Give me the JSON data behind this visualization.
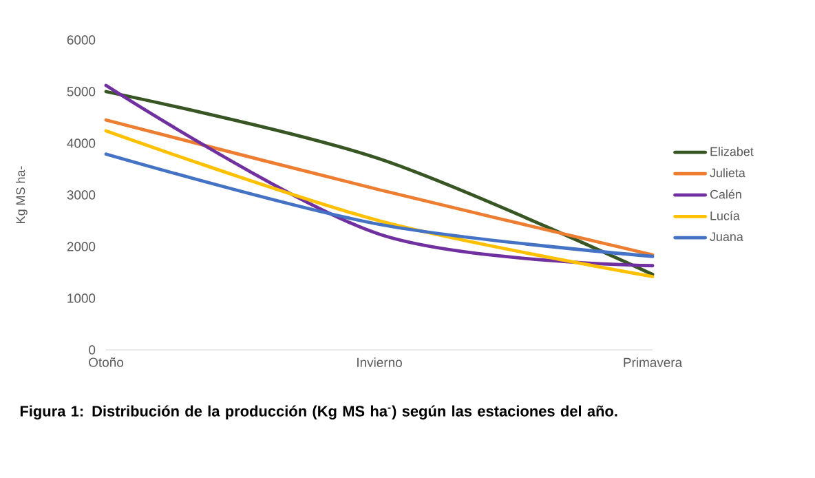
{
  "chart_data": {
    "type": "line",
    "title": "Figura 1: Distribución de la producción (Kg MS ha$^{-}$) según las estaciones del año.",
    "ylabel": "Kg MS ha-",
    "categories": [
      "Otoño",
      "Invierno",
      "Primavera"
    ],
    "ylim": [
      0,
      6000
    ],
    "yticks": [
      0,
      1000,
      2000,
      3000,
      4000,
      5000,
      6000
    ],
    "legend": "right",
    "series": [
      {
        "name": "Elizabet",
        "color": "#375623",
        "values": [
          5000,
          3700,
          1460
        ]
      },
      {
        "name": "Julieta",
        "color": "#ed7d31",
        "values": [
          4450,
          3100,
          1840
        ]
      },
      {
        "name": "Calén",
        "color": "#7030a0",
        "values": [
          5120,
          2240,
          1630
        ]
      },
      {
        "name": "Lucía",
        "color": "#ffc000",
        "values": [
          4240,
          2500,
          1420
        ]
      },
      {
        "name": "Juana",
        "color": "#4472c4",
        "values": [
          3790,
          2430,
          1810
        ]
      }
    ]
  }
}
